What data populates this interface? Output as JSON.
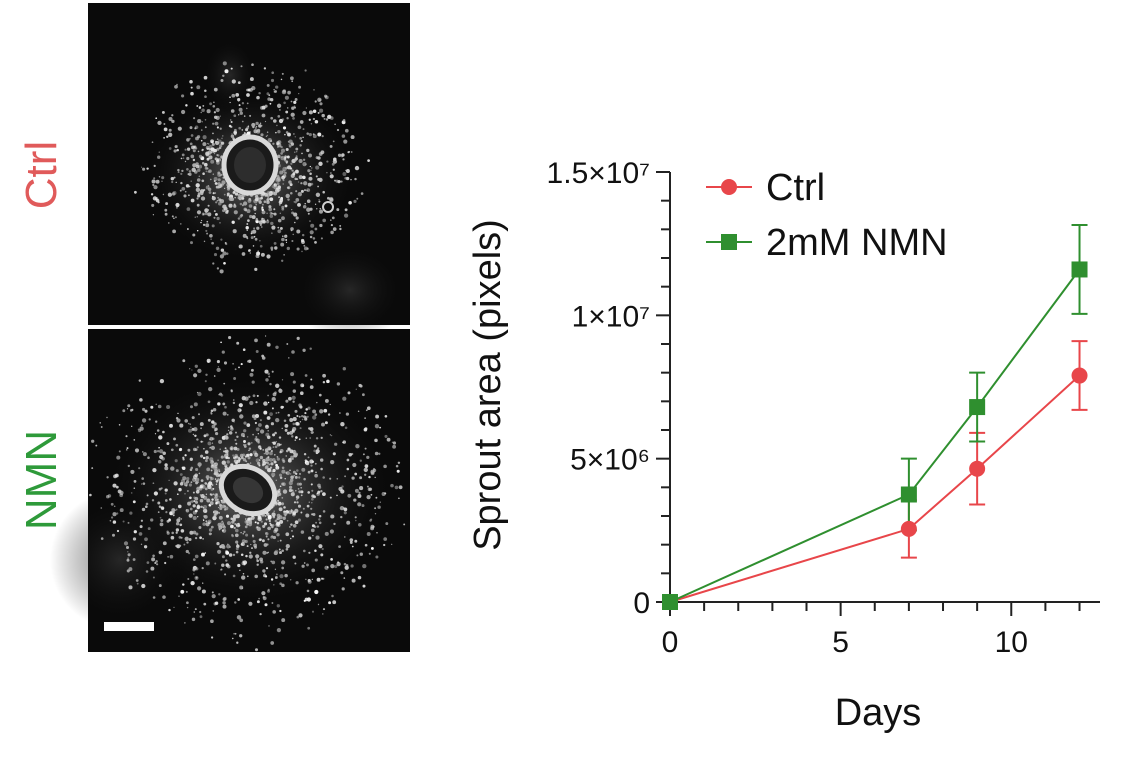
{
  "panels": {
    "row_labels": [
      {
        "text": "Ctrl",
        "color": "#e05a5a"
      },
      {
        "text": "NMN",
        "color": "#2e9a3a"
      }
    ],
    "image_background": "#0a0a0a",
    "scale_bar_color": "#ffffff"
  },
  "chart_data": {
    "type": "line",
    "title": "",
    "xlabel": "Days",
    "ylabel": "Sprout area (pixels)",
    "xlim": [
      0,
      12.6
    ],
    "ylim": [
      0,
      15000000
    ],
    "x_ticks": [
      0,
      5,
      10
    ],
    "x_minor_step": 1,
    "y_ticks": [
      {
        "value": 0,
        "label": "0"
      },
      {
        "value": 5000000,
        "label": "5×10⁶"
      },
      {
        "value": 10000000,
        "label": "1×10⁷"
      },
      {
        "value": 15000000,
        "label": "1.5×10⁷"
      }
    ],
    "legend_position": "top-left",
    "series": [
      {
        "name": "Ctrl",
        "color": "#e8464a",
        "marker": "circle",
        "x": [
          0,
          7,
          9,
          12
        ],
        "y": [
          0,
          2550000,
          4650000,
          7900000
        ],
        "err": [
          0,
          1000000,
          1250000,
          1200000
        ]
      },
      {
        "name": "2mM NMN",
        "color": "#2f8f2f",
        "marker": "square",
        "x": [
          0,
          7,
          9,
          12
        ],
        "y": [
          0,
          3750000,
          6800000,
          11600000
        ],
        "err": [
          0,
          1250000,
          1200000,
          1550000
        ]
      }
    ]
  }
}
